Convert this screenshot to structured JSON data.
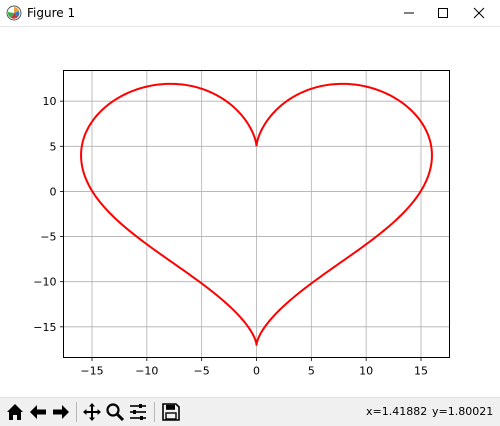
{
  "window": {
    "title": "Figure 1",
    "controls": {
      "minimize": "minimize-icon",
      "maximize": "maximize-icon",
      "close": "close-icon"
    }
  },
  "toolbar": {
    "buttons": [
      "home-icon",
      "back-arrow-icon",
      "forward-arrow-icon",
      "pan-icon",
      "zoom-icon",
      "configure-subplots-icon",
      "save-icon"
    ],
    "x_readout": "x=1.41882",
    "y_readout": "y=1.80021"
  },
  "chart_data": {
    "type": "line",
    "title": "",
    "xlabel": "",
    "ylabel": "",
    "grid": true,
    "xlim": [
      -17.6,
      17.6
    ],
    "ylim": [
      -18.4,
      13.4
    ],
    "xticks": [
      -15,
      -10,
      -5,
      0,
      5,
      10,
      15
    ],
    "yticks": [
      -15,
      -10,
      -5,
      0,
      5,
      10
    ],
    "xtick_labels": [
      "−15",
      "−10",
      "−5",
      "0",
      "5",
      "10",
      "15"
    ],
    "ytick_labels": [
      "−15",
      "−10",
      "−5",
      "0",
      "5",
      "10"
    ],
    "series": [
      {
        "color": "#ff0000",
        "equation": "x = 16 sin^3(t), y = 13 cos(t) - 5 cos(2t) - 2 cos(3t) - cos(4t), t in [0, 2π]",
        "x": [
          0,
          0.63,
          3.97,
          10.2,
          15.37,
          16,
          12.5,
          7.33,
          2.81,
          0.32,
          0,
          -0.32,
          -2.81,
          -7.33,
          -12.5,
          -16,
          -15.37,
          -10.2,
          -3.97,
          -0.63,
          0
        ],
        "y": [
          5,
          6.06,
          8.98,
          11.94,
          9.12,
          4,
          -1.44,
          -6.32,
          -11.13,
          -15.36,
          -17,
          -15.36,
          -11.13,
          -6.32,
          -1.44,
          4,
          9.12,
          11.94,
          8.98,
          6.06,
          5
        ]
      }
    ]
  }
}
